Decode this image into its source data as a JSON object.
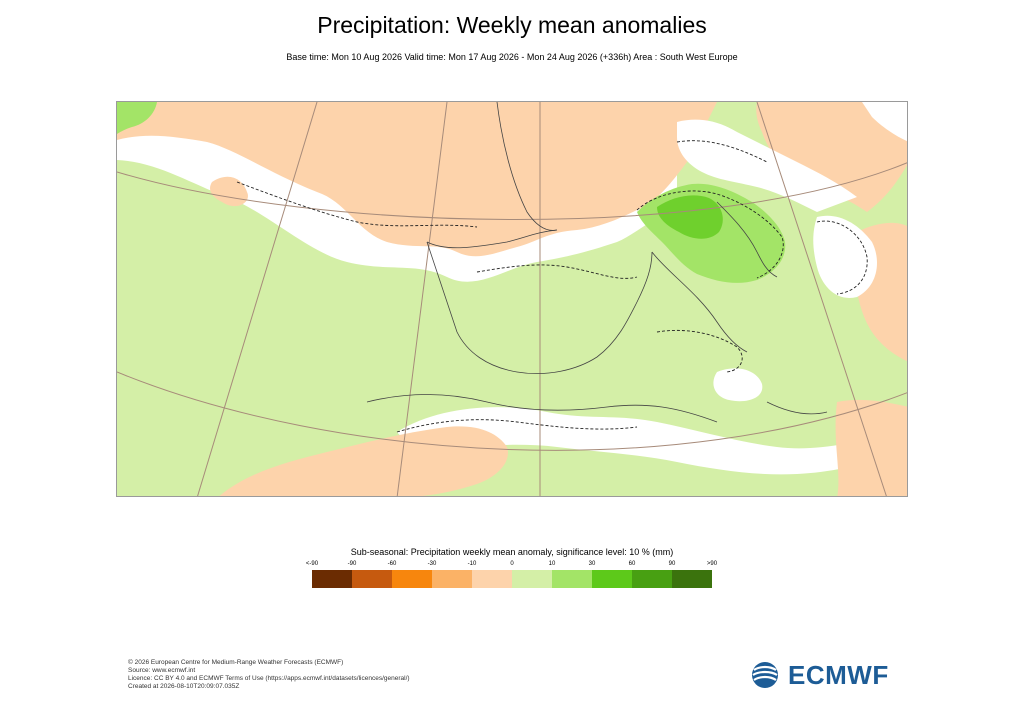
{
  "title": "Precipitation: Weekly mean anomalies",
  "subtitle": "Base time: Mon 10 Aug 2026 Valid time: Mon 17 Aug 2026 - Mon 24 Aug 2026 (+336h) Area : South West Europe",
  "legend": {
    "title": "Sub-seasonal: Precipitation weekly mean anomaly, significance level: 10 % (mm)",
    "labels": [
      "<-90",
      "-90",
      "-60",
      "-30",
      "-10",
      "0",
      "10",
      "30",
      "60",
      "90",
      ">90"
    ],
    "colors": [
      "#6b2c02",
      "#c65a0f",
      "#f7860d",
      "#fbb266",
      "#fdd3ab",
      "#d4efa7",
      "#a3e467",
      "#5dc91a",
      "#48a012",
      "#3b730d"
    ]
  },
  "footer": {
    "line1": "© 2026 European Centre for Medium-Range Weather Forecasts (ECMWF)",
    "line2": "Source: www.ecmwf.int",
    "line3": "Licence: CC BY 4.0 and ECMWF Terms of Use (https://apps.ecmwf.int/datasets/licences/general/)",
    "line4": "Created at 2026-08-10T20:09:07.035Z"
  },
  "logo": {
    "text": "ECMWF",
    "color": "#1d5c96"
  },
  "map": {
    "colors": {
      "dry_light": "#fdd3ab",
      "dry": "#fbb266",
      "wet_light": "#d4efa7",
      "wet": "#a3e467",
      "wet_mid": "#5dc91a",
      "white": "#ffffff"
    }
  }
}
